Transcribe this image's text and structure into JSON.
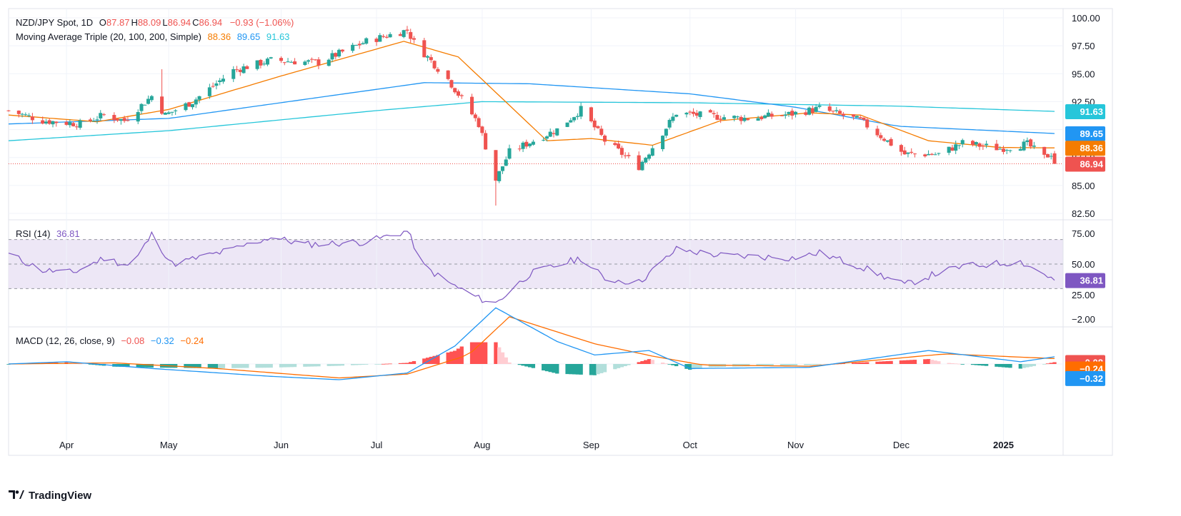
{
  "header": {
    "symbol": "NZD/JPY Spot, 1D",
    "ohlc": [
      {
        "k": "O",
        "v": "87.87"
      },
      {
        "k": "H",
        "v": "88.09"
      },
      {
        "k": "L",
        "v": "86.94"
      },
      {
        "k": "C",
        "v": "86.94"
      }
    ],
    "change": "−0.93 (−1.06%)"
  },
  "ma_legend": {
    "title": "Moving Average Triple (20, 100, 200, Simple)",
    "values": [
      "88.36",
      "89.65",
      "91.63"
    ]
  },
  "rsi_legend": {
    "title": "RSI (14)",
    "value": "36.81"
  },
  "macd_legend": {
    "title": "MACD (12, 26, close, 9)",
    "values": [
      "−0.08",
      "−0.32",
      "−0.24"
    ]
  },
  "branding": {
    "name": "TradingView"
  },
  "colors": {
    "up": "#26a69a",
    "down": "#ef5350",
    "ma20": "#f57c00",
    "ma100": "#2196f3",
    "ma200": "#26c6da",
    "rsi": "#7e57c2",
    "rsi_band": "#ede7f6",
    "macd": "#2196f3",
    "signal": "#ff6d00",
    "hist_up_strong": "#26a69a",
    "hist_up_weak": "#b2dfdb",
    "hist_down_strong": "#ff5252",
    "hist_down_weak": "#ffcdd2",
    "price_line": "#ef5350",
    "grid": "#f0f3fa",
    "text": "#131722"
  },
  "chart_data": {
    "type": "candlestick",
    "x_labels": [
      "Apr",
      "May",
      "Jun",
      "Jul",
      "Aug",
      "Sep",
      "Oct",
      "Nov",
      "Dec",
      "2025"
    ],
    "price_axis": {
      "ticks": [
        "100.00",
        "97.50",
        "95.00",
        "92.50",
        "90.00",
        "87.50",
        "85.00",
        "82.50"
      ],
      "range": [
        82.0,
        100.5
      ]
    },
    "price_anchors": [
      [
        "2024-03-15",
        91.7
      ],
      [
        "2024-03-25",
        90.8
      ],
      [
        "2024-04-05",
        90.5
      ],
      [
        "2024-04-12",
        91.3
      ],
      [
        "2024-04-18",
        90.8
      ],
      [
        "2024-04-26",
        93.0
      ],
      [
        "2024-04-30",
        91.3
      ],
      [
        "2024-05-08",
        92.5
      ],
      [
        "2024-05-20",
        95.3
      ],
      [
        "2024-05-31",
        96.2
      ],
      [
        "2024-06-14",
        96.0
      ],
      [
        "2024-06-28",
        97.9
      ],
      [
        "2024-07-10",
        98.9
      ],
      [
        "2024-07-12",
        97.8
      ],
      [
        "2024-07-22",
        94.5
      ],
      [
        "2024-07-31",
        90.5
      ],
      [
        "2024-08-05",
        85.5
      ],
      [
        "2024-08-09",
        88.0
      ],
      [
        "2024-08-23",
        90.0
      ],
      [
        "2024-08-30",
        91.8
      ],
      [
        "2024-09-06",
        89.0
      ],
      [
        "2024-09-16",
        86.7
      ],
      [
        "2024-09-27",
        91.5
      ],
      [
        "2024-10-07",
        91.2
      ],
      [
        "2024-10-18",
        91.0
      ],
      [
        "2024-10-31",
        91.4
      ],
      [
        "2024-11-08",
        91.9
      ],
      [
        "2024-11-20",
        90.8
      ],
      [
        "2024-12-03",
        87.8
      ],
      [
        "2024-12-13",
        87.8
      ],
      [
        "2024-12-20",
        88.8
      ],
      [
        "2024-12-31",
        88.3
      ],
      [
        "2025-01-08",
        88.7
      ],
      [
        "2025-01-13",
        87.5
      ],
      [
        "2025-01-15",
        87.87
      ],
      [
        "2025-01-16",
        86.94
      ]
    ],
    "ma_anchors": {
      "ma20": [
        [
          "2024-03-15",
          91.3
        ],
        [
          "2024-04-10",
          90.7
        ],
        [
          "2024-05-01",
          91.8
        ],
        [
          "2024-06-03",
          94.8
        ],
        [
          "2024-07-09",
          97.9
        ],
        [
          "2024-07-25",
          96.5
        ],
        [
          "2024-08-20",
          89.0
        ],
        [
          "2024-09-02",
          89.2
        ],
        [
          "2024-09-20",
          88.6
        ],
        [
          "2024-10-10",
          90.8
        ],
        [
          "2024-11-05",
          91.5
        ],
        [
          "2024-11-20",
          91.3
        ],
        [
          "2024-12-10",
          89.0
        ],
        [
          "2024-12-31",
          88.4
        ],
        [
          "2025-01-16",
          88.36
        ]
      ],
      "ma100": [
        [
          "2024-03-15",
          90.5
        ],
        [
          "2024-05-01",
          91.0
        ],
        [
          "2024-07-15",
          94.2
        ],
        [
          "2024-08-15",
          94.1
        ],
        [
          "2024-10-01",
          93.2
        ],
        [
          "2024-11-01",
          92.0
        ],
        [
          "2024-12-01",
          90.3
        ],
        [
          "2025-01-16",
          89.65
        ]
      ],
      "ma200": [
        [
          "2024-03-15",
          89.0
        ],
        [
          "2024-05-01",
          89.9
        ],
        [
          "2024-07-01",
          91.7
        ],
        [
          "2024-08-01",
          92.5
        ],
        [
          "2024-10-01",
          92.4
        ],
        [
          "2024-12-01",
          92.1
        ],
        [
          "2025-01-16",
          91.63
        ]
      ]
    },
    "rsi": {
      "ticks": [
        "75.00",
        "50.00",
        "25.00"
      ],
      "range": [
        15,
        82
      ],
      "bands": [
        30,
        50,
        70
      ],
      "anchors": [
        [
          "2024-03-15",
          58
        ],
        [
          "2024-03-25",
          45
        ],
        [
          "2024-04-03",
          43
        ],
        [
          "2024-04-12",
          55
        ],
        [
          "2024-04-20",
          48
        ],
        [
          "2024-04-26",
          74
        ],
        [
          "2024-05-02",
          50
        ],
        [
          "2024-05-20",
          62
        ],
        [
          "2024-05-31",
          72
        ],
        [
          "2024-06-10",
          66
        ],
        [
          "2024-06-28",
          68
        ],
        [
          "2024-07-10",
          77
        ],
        [
          "2024-07-15",
          48
        ],
        [
          "2024-07-22",
          35
        ],
        [
          "2024-07-31",
          22
        ],
        [
          "2024-08-05",
          18
        ],
        [
          "2024-08-15",
          42
        ],
        [
          "2024-08-30",
          55
        ],
        [
          "2024-09-06",
          38
        ],
        [
          "2024-09-16",
          35
        ],
        [
          "2024-09-27",
          62
        ],
        [
          "2024-10-10",
          57
        ],
        [
          "2024-10-31",
          55
        ],
        [
          "2024-11-08",
          59
        ],
        [
          "2024-11-20",
          48
        ],
        [
          "2024-12-03",
          33
        ],
        [
          "2024-12-13",
          43
        ],
        [
          "2024-12-20",
          48
        ],
        [
          "2025-01-06",
          52
        ],
        [
          "2025-01-13",
          42
        ],
        [
          "2025-01-16",
          36.81
        ]
      ]
    },
    "macd": {
      "ticks": [
        "−2.00"
      ],
      "range": [
        -2.6,
        1.15
      ],
      "macd_anchors": [
        [
          "2024-03-15",
          0.0
        ],
        [
          "2024-04-01",
          -0.1
        ],
        [
          "2024-04-26",
          0.2
        ],
        [
          "2024-05-31",
          0.55
        ],
        [
          "2024-06-20",
          0.7
        ],
        [
          "2024-07-10",
          0.4
        ],
        [
          "2024-07-24",
          -0.8
        ],
        [
          "2024-08-05",
          -2.5
        ],
        [
          "2024-08-23",
          -1.0
        ],
        [
          "2024-09-03",
          -0.4
        ],
        [
          "2024-09-19",
          -0.6
        ],
        [
          "2024-10-01",
          0.2
        ],
        [
          "2024-11-05",
          0.15
        ],
        [
          "2024-12-10",
          -0.6
        ],
        [
          "2025-01-06",
          -0.1
        ],
        [
          "2025-01-16",
          -0.32
        ]
      ],
      "signal_anchors": [
        [
          "2024-03-15",
          0.0
        ],
        [
          "2024-04-15",
          -0.05
        ],
        [
          "2024-05-15",
          0.2
        ],
        [
          "2024-06-20",
          0.62
        ],
        [
          "2024-07-10",
          0.45
        ],
        [
          "2024-07-28",
          -0.4
        ],
        [
          "2024-08-09",
          -2.1
        ],
        [
          "2024-09-03",
          -0.9
        ],
        [
          "2024-09-20",
          -0.35
        ],
        [
          "2024-10-05",
          0.05
        ],
        [
          "2024-11-05",
          0.1
        ],
        [
          "2024-12-15",
          -0.45
        ],
        [
          "2025-01-16",
          -0.24
        ]
      ]
    }
  }
}
